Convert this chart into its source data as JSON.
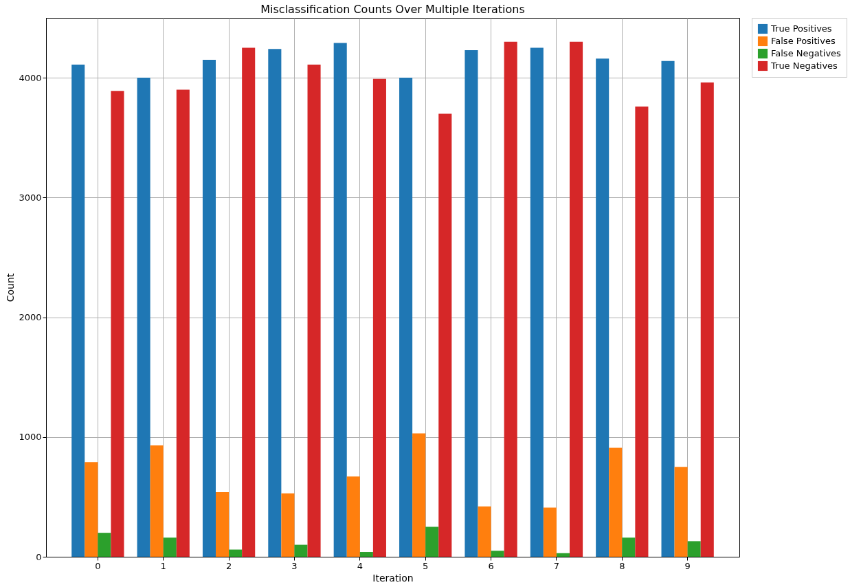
{
  "chart_data": {
    "type": "bar",
    "title": "Misclassification Counts Over Multiple Iterations",
    "xlabel": "Iteration",
    "ylabel": "Count",
    "categories": [
      "0",
      "1",
      "2",
      "3",
      "4",
      "5",
      "6",
      "7",
      "8",
      "9"
    ],
    "series": [
      {
        "name": "True Positives",
        "color": "#1f77b4",
        "values": [
          4110,
          4000,
          4150,
          4240,
          4290,
          4000,
          4230,
          4250,
          4160,
          4140
        ]
      },
      {
        "name": "False Positives",
        "color": "#ff7f0e",
        "values": [
          790,
          930,
          540,
          530,
          670,
          1030,
          420,
          410,
          910,
          750
        ]
      },
      {
        "name": "False Negatives",
        "color": "#2ca02c",
        "values": [
          200,
          160,
          60,
          100,
          40,
          250,
          50,
          30,
          160,
          130
        ]
      },
      {
        "name": "True Negatives",
        "color": "#d62728",
        "values": [
          3890,
          3900,
          4250,
          4110,
          3990,
          3700,
          4300,
          4300,
          3760,
          3960
        ]
      }
    ],
    "ylim": [
      0,
      4500
    ],
    "yticks": [
      0,
      1000,
      2000,
      3000,
      4000
    ],
    "grid": true,
    "legend": "top right"
  }
}
